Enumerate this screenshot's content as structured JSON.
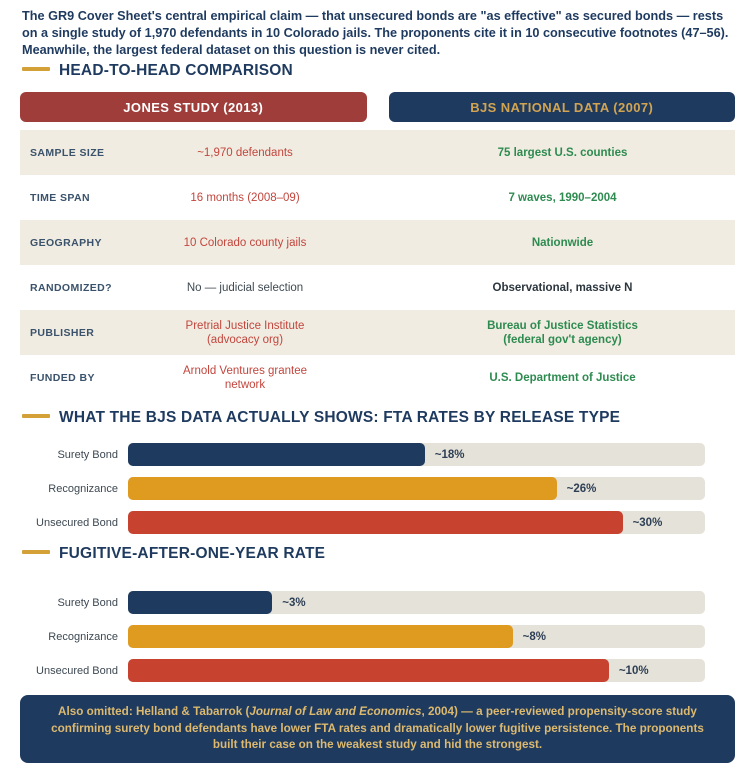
{
  "intro": {
    "text": "The GR9 Cover Sheet's central empirical claim — that unsecured bonds are \"as effective\" as secured bonds — rests on a single study of 1,970 defendants in 10 Colorado jails. The proponents cite it in 10 consecutive footnotes (47–56). Meanwhile, the largest federal dataset on this question is never cited."
  },
  "sections": {
    "comparison_title": "HEAD-TO-HEAD COMPARISON",
    "chart1_title": "WHAT THE BJS DATA ACTUALLY SHOWS: FTA RATES BY RELEASE TYPE",
    "chart2_title": "FUGITIVE-AFTER-ONE-YEAR RATE"
  },
  "comparison_table": {
    "columns": [
      {
        "label": "JONES STUDY (2013)",
        "bg": "#9e3d3a",
        "text_color": "#ffffff"
      },
      {
        "label": "BJS NATIONAL DATA (2007)",
        "bg": "#1e3a5f",
        "text_color": "#d2a452"
      }
    ],
    "rows": [
      {
        "label": "SAMPLE SIZE",
        "jones": "~1,970 defendants",
        "bjs": "75 largest U.S. counties",
        "neutral": false
      },
      {
        "label": "TIME SPAN",
        "jones": "16 months (2008–09)",
        "bjs": "7 waves, 1990–2004",
        "neutral": false
      },
      {
        "label": "GEOGRAPHY",
        "jones": "10 Colorado county jails",
        "bjs": "Nationwide",
        "neutral": false
      },
      {
        "label": "RANDOMIZED?",
        "jones": "No — judicial selection",
        "bjs": "Observational, massive N",
        "neutral": true
      },
      {
        "label": "PUBLISHER",
        "jones": "Pretrial Justice Institute\n(advocacy org)",
        "bjs": "Bureau of Justice Statistics\n(federal gov't agency)",
        "neutral": false
      },
      {
        "label": "FUNDED BY",
        "jones": "Arnold Ventures grantee\nnetwork",
        "bjs": "U.S. Department of Justice",
        "neutral": false
      }
    ]
  },
  "chart_data": [
    {
      "type": "bar",
      "orientation": "horizontal",
      "title": "WHAT THE BJS DATA ACTUALLY SHOWS: FTA RATES BY RELEASE TYPE",
      "categories": [
        "Surety Bond",
        "Recognizance",
        "Unsecured Bond"
      ],
      "values": [
        18,
        26,
        30
      ],
      "labels": [
        "~18%",
        "~26%",
        "~30%"
      ],
      "xlim": [
        0,
        35
      ],
      "colors": [
        "#1e3a5f",
        "#df9a20",
        "#c8432f"
      ],
      "track_color": "#e4e2d9",
      "legend": "none",
      "grid": false
    },
    {
      "type": "bar",
      "orientation": "horizontal",
      "title": "FUGITIVE-AFTER-ONE-YEAR RATE",
      "categories": [
        "Surety Bond",
        "Recognizance",
        "Unsecured Bond"
      ],
      "values": [
        3,
        8,
        10
      ],
      "labels": [
        "~3%",
        "~8%",
        "~10%"
      ],
      "xlim": [
        0,
        12
      ],
      "colors": [
        "#1e3a5f",
        "#df9a20",
        "#c8432f"
      ],
      "track_color": "#e4e2d9",
      "legend": "none",
      "grid": false
    }
  ],
  "footer": {
    "prefix": "Also omitted: Helland & Tabarrok (",
    "italic": "Journal of Law and Economics",
    "suffix": ", 2004) — a peer-reviewed propensity-score study confirming surety bond defendants have lower FTA rates and dramatically lower fugitive persistence. The proponents built their case on the weakest study and hid the strongest."
  },
  "colors": {
    "navy": "#1e3a5f",
    "maroon": "#9e3d3a",
    "gold_accent": "#d3a138",
    "gold_text": "#d2a452",
    "footer_gold": "#dcb96f",
    "green_text": "#2e8b50",
    "red_text": "#c2463d",
    "row_beige": "#f0ece1",
    "bar_track": "#e4e2d9"
  }
}
